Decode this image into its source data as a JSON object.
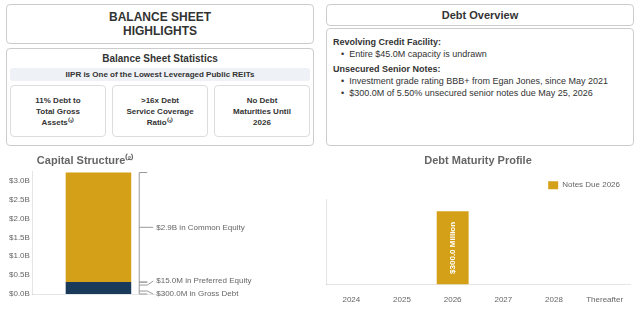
{
  "chart_data": [
    {
      "type": "text",
      "title": "BALANCE SHEET\nHIGHLIGHTS"
    },
    {
      "type": "text",
      "title": "Balance Sheet Statistics",
      "subtitle": "IIPR is One of the Lowest Leveraged Public REITs",
      "annotations": [
        "11% Debt to\nTotal Gross\nAssets⁽¹⁾",
        ">16x Debt\nService Coverage\nRatio⁽¹⁾",
        "No Debt\nMaturities Until\n2026"
      ]
    },
    {
      "type": "text",
      "title": "Debt Overview",
      "annotations": [
        "Revolving Credit Facility:",
        "•  Entire $45.0M capacity is undrawn",
        "Unsecured Senior Notes:",
        "•  Investment grade rating BBB+ from Egan Jones, since May 2021",
        "•  $300.0M of 5.50% unsecured senior notes due May 25, 2026"
      ]
    },
    {
      "type": "bar",
      "title": "Capital Structure⁽²⁾",
      "stacked": true,
      "categories": [
        null
      ],
      "series": [
        {
          "color": "#1a3a5c",
          "values": [
            0.315
          ]
        },
        {
          "color": "#d4a017",
          "values": [
            2.9
          ]
        }
      ],
      "ylim": [
        0,
        3.25
      ],
      "yticks": [
        {
          "value": 0.0,
          "label": "$0.0B"
        },
        {
          "value": 0.5,
          "label": "$0.5B"
        },
        {
          "value": 1.0,
          "label": "$1.0B"
        },
        {
          "value": 1.5,
          "label": "$1.5B"
        },
        {
          "value": 2.0,
          "label": "$2.0B"
        },
        {
          "value": 2.5,
          "label": "$2.5B"
        },
        {
          "value": 3.0,
          "label": "$3.0B"
        }
      ],
      "tick_labels": "y",
      "grid": false,
      "annotations": [
        "$2.9B in Common Equity",
        "$15.0M in Preferred Equity",
        "$300.0M in Gross Debt"
      ]
    },
    {
      "type": "bar",
      "title": "Debt Maturity Profile",
      "categories": [
        "2024",
        "2025",
        "2026",
        "2027",
        "2028",
        "Thereafter"
      ],
      "series": [
        {
          "name": "Notes Due 2026",
          "color": "#d4a017",
          "values": [
            0,
            0,
            300,
            0,
            0,
            0
          ],
          "value_labels": [
            null,
            null,
            "$300.0 Million",
            null,
            null,
            null
          ]
        }
      ],
      "ylim": [
        0,
        350
      ],
      "tick_labels": "x",
      "grid": false,
      "legend": "top"
    }
  ]
}
